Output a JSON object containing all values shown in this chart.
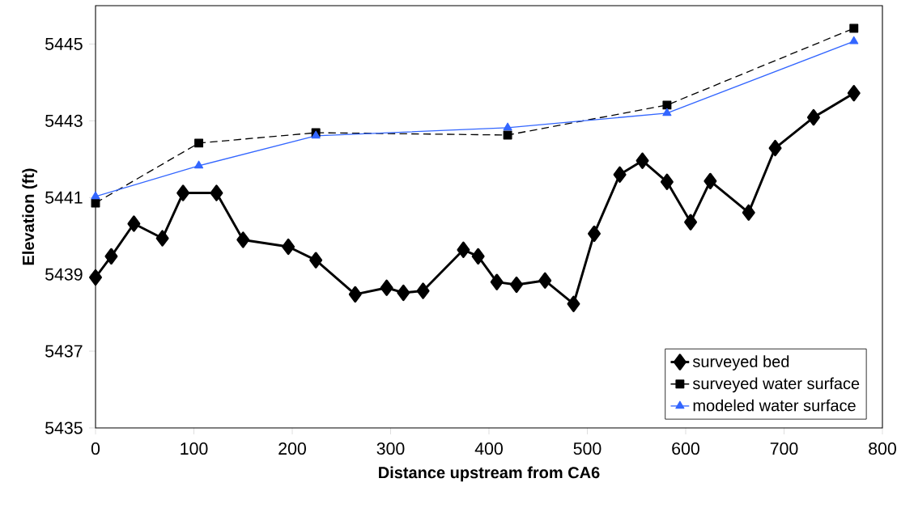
{
  "chart_data": {
    "type": "line",
    "xlabel": "Distance upstream from CA6",
    "ylabel": "Elevation (ft)",
    "xlim": [
      0,
      800
    ],
    "xticks": [
      0,
      100,
      200,
      300,
      400,
      500,
      600,
      700,
      800
    ],
    "ylim": [
      5435,
      5446
    ],
    "yticks": [
      5435,
      5437,
      5439,
      5441,
      5443,
      5445
    ],
    "grid": false,
    "legend": "bottom right",
    "series": [
      {
        "name": "surveyed bed",
        "color": "#000000",
        "marker": "diamond",
        "line_style": "solid",
        "x": [
          0,
          16,
          39,
          68,
          89,
          123,
          150,
          196,
          224,
          264,
          296,
          313,
          333,
          374,
          389,
          408,
          428,
          457,
          486,
          507,
          533,
          556,
          581,
          605,
          625,
          664,
          691,
          730,
          771
        ],
        "values": [
          5438.92,
          5439.47,
          5440.32,
          5439.94,
          5441.12,
          5441.12,
          5439.9,
          5439.72,
          5439.37,
          5438.48,
          5438.65,
          5438.52,
          5438.57,
          5439.64,
          5439.47,
          5438.8,
          5438.73,
          5438.84,
          5438.23,
          5440.06,
          5441.6,
          5441.96,
          5441.41,
          5440.36,
          5441.43,
          5440.61,
          5442.29,
          5443.09,
          5443.72
        ]
      },
      {
        "name": "surveyed water surface",
        "color": "#000000",
        "marker": "square",
        "line_style": "dashed",
        "x": [
          0,
          105,
          224,
          419,
          581,
          771
        ],
        "values": [
          5440.86,
          5442.42,
          5442.69,
          5442.63,
          5443.41,
          5445.41
        ]
      },
      {
        "name": "modeled water surface",
        "color": "#3366ff",
        "marker": "triangle",
        "line_style": "solid",
        "x": [
          0,
          105,
          224,
          419,
          581,
          771
        ],
        "values": [
          5441.03,
          5441.83,
          5442.61,
          5442.82,
          5443.2,
          5445.07
        ]
      }
    ]
  }
}
